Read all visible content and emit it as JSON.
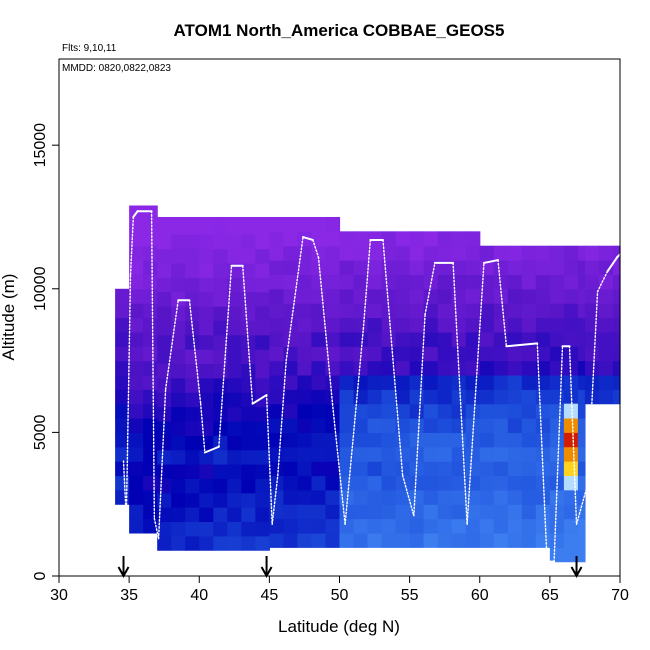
{
  "chart_data": {
    "type": "heatmap",
    "title": "ATOM1 North_America COBBAE_GEOS5",
    "subtitle_flights": "Flts: 9,10,11",
    "subtitle_dates": "MMDD: 0820,0822,0823",
    "xlabel": "Latitude (deg N)",
    "ylabel": "Altitude (m)",
    "xlim": [
      30,
      70
    ],
    "ylim": [
      0,
      18000
    ],
    "xticks": [
      "30",
      "35",
      "40",
      "45",
      "50",
      "55",
      "60",
      "65",
      "70"
    ],
    "yticks": [
      "0",
      "5000",
      "10000",
      "15000"
    ],
    "grid": false,
    "legend": "none",
    "colors": {
      "upper_purple": "#8a28e6",
      "mid_violet": "#5a16c8",
      "deep_blue": "#0000b4",
      "mid_blue": "#1e50dc",
      "light_blue": "#3c7ef0",
      "hot_red": "#d21e00",
      "hot_orange": "#f08c00",
      "hot_yellow": "#ffd21e",
      "pale_blue": "#b4dcff",
      "track": "#ffffff"
    },
    "curtain_columns": [
      {
        "lat": [
          34.0,
          35.0
        ],
        "alt": [
          2500,
          10000
        ],
        "tone": 0.35
      },
      {
        "lat": [
          35.0,
          37.0
        ],
        "alt": [
          1500,
          12900
        ],
        "tone": 0.75
      },
      {
        "lat": [
          37.0,
          41.0
        ],
        "alt": [
          900,
          12500
        ],
        "tone": 0.7
      },
      {
        "lat": [
          41.0,
          45.0
        ],
        "alt": [
          900,
          12500
        ],
        "tone": 0.6
      },
      {
        "lat": [
          45.0,
          50.0
        ],
        "alt": [
          1000,
          12500
        ],
        "tone": 0.55
      },
      {
        "lat": [
          50.0,
          56.0
        ],
        "alt": [
          1000,
          12000
        ],
        "tone": 0.45
      },
      {
        "lat": [
          56.0,
          60.0
        ],
        "alt": [
          1000,
          12000
        ],
        "tone": 0.4
      },
      {
        "lat": [
          60.0,
          65.0
        ],
        "alt": [
          1000,
          11500
        ],
        "tone": 0.35
      },
      {
        "lat": [
          65.0,
          67.5
        ],
        "alt": [
          500,
          11500
        ],
        "tone": 0.3
      },
      {
        "lat": [
          67.5,
          70.0
        ],
        "alt": [
          6000,
          11500
        ],
        "tone": 0.5
      }
    ],
    "hotspot": {
      "lat": [
        66.0,
        67.0
      ],
      "alt": [
        3000,
        6000
      ],
      "levels": [
        "pale_blue",
        "hot_yellow",
        "hot_orange",
        "hot_red",
        "hot_orange",
        "pale_blue"
      ]
    },
    "flight_track": {
      "lat": [
        34.6,
        34.8,
        35.1,
        35.3,
        35.6,
        36.6,
        36.8,
        37.1,
        37.6,
        38.5,
        39.3,
        40.1,
        40.4,
        41.4,
        42.3,
        43.1,
        43.8,
        44.8,
        45.2,
        45.6,
        46.2,
        47.4,
        48.1,
        48.5,
        49.5,
        50.4,
        51.7,
        52.2,
        53.1,
        54.5,
        55.3,
        56.1,
        56.8,
        58.1,
        59.1,
        60.3,
        61.3,
        61.9,
        64.1,
        64.8,
        65.3,
        65.9,
        66.4,
        66.9,
        67.7,
        68.4,
        69.1,
        69.8,
        70.0
      ],
      "alt": [
        4000,
        2000,
        10500,
        12500,
        12700,
        12700,
        2000,
        1300,
        6500,
        9600,
        9600,
        6000,
        4300,
        4500,
        10800,
        10800,
        6000,
        6300,
        1800,
        3500,
        7500,
        11800,
        11700,
        11100,
        6000,
        1800,
        8600,
        11700,
        11700,
        3500,
        2100,
        9100,
        10900,
        10900,
        1800,
        10900,
        11000,
        8000,
        8100,
        500,
        500,
        8000,
        8000,
        1800,
        3200,
        9900,
        10600,
        11100,
        11200
      ]
    },
    "flight_markers_lat": [
      34.6,
      44.8,
      66.9
    ]
  }
}
